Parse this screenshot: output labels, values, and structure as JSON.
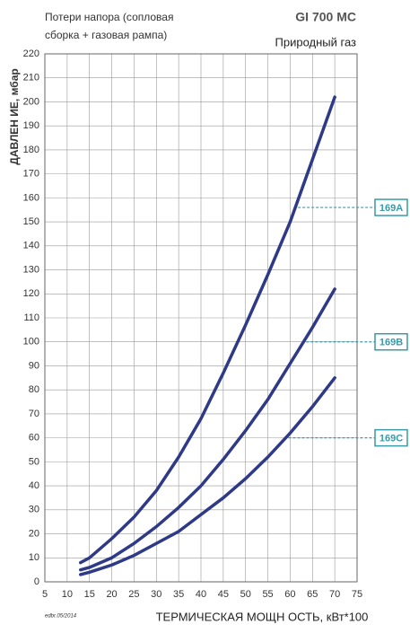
{
  "chart_data": {
    "type": "line",
    "title": "GI 700 MC",
    "subtitle": "Природный газ",
    "note_lines": [
      "Потери напора (сопловая",
      "сборка + газовая рампа)"
    ],
    "x_label": "ТЕРМИЧЕСКАЯ МОЩН ОСТЬ, кВт*100",
    "y_label": "ДАВЛЕН ИЕ, мбар",
    "footnote": "edbr.05/2014",
    "x": [
      13,
      15,
      20,
      25,
      30,
      35,
      40,
      45,
      50,
      55,
      60,
      65,
      70
    ],
    "series": [
      {
        "name": "169A",
        "color": "#2e3a87",
        "label_level": 156,
        "values": [
          8,
          10,
          18,
          27,
          38,
          52,
          68,
          87,
          107,
          128,
          150,
          176,
          202
        ]
      },
      {
        "name": "169B",
        "color": "#2e3a87",
        "label_level": 100,
        "values": [
          5,
          6,
          10,
          16,
          23,
          31,
          40,
          51,
          63,
          76,
          91,
          106,
          122
        ]
      },
      {
        "name": "169C",
        "color": "#2e3a87",
        "label_level": 60,
        "values": [
          3,
          4,
          7,
          11,
          16,
          21,
          28,
          35,
          43,
          52,
          62,
          73,
          85
        ]
      }
    ],
    "xlim": [
      5,
      75
    ],
    "ylim": [
      0,
      220
    ],
    "xticks": [
      5,
      10,
      15,
      20,
      25,
      30,
      35,
      40,
      45,
      50,
      55,
      60,
      65,
      70,
      75
    ],
    "yticks": [
      0,
      10,
      20,
      30,
      40,
      50,
      60,
      70,
      80,
      90,
      100,
      110,
      120,
      130,
      140,
      150,
      160,
      170,
      180,
      190,
      200,
      210,
      220
    ],
    "grid": true
  }
}
